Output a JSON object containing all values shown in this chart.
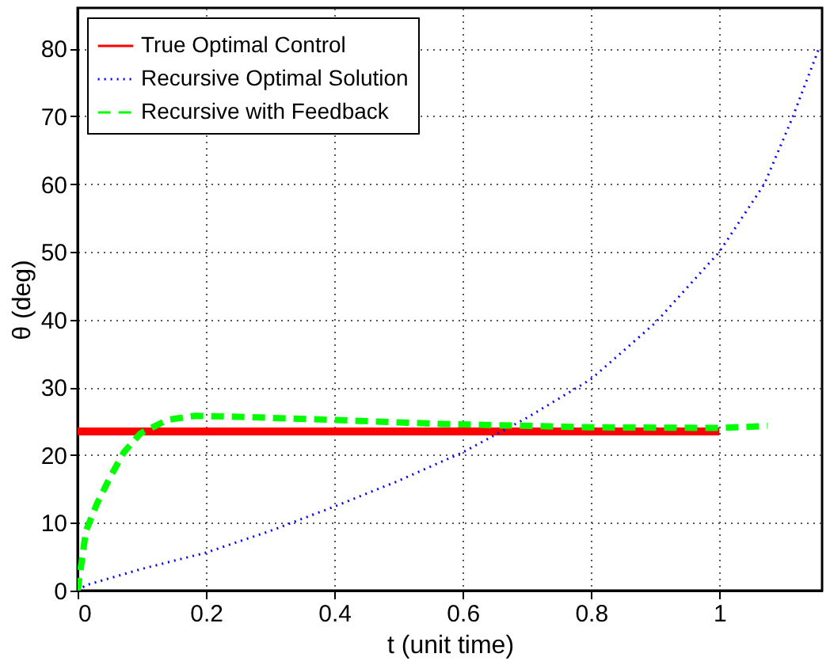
{
  "chart_data": {
    "type": "line",
    "xlabel": "t (unit time)",
    "ylabel": "θ (deg)",
    "xlim": [
      0,
      1.16
    ],
    "ylim": [
      0,
      86
    ],
    "xticks": [
      0,
      0.2,
      0.4,
      0.6,
      0.8,
      1
    ],
    "yticks": [
      0,
      10,
      20,
      30,
      40,
      50,
      60,
      70,
      80
    ],
    "grid": true,
    "legend": "top left",
    "series": [
      {
        "name": "True Optimal Control",
        "color": "#ff0000",
        "line_style": "solid",
        "x": [
          0,
          1
        ],
        "values": [
          23.5,
          23.5
        ]
      },
      {
        "name": "Recursive Optimal Solution",
        "color": "#0000ff",
        "line_style": "dotted",
        "x": [
          0,
          0.013,
          0.1,
          0.2,
          0.3,
          0.4,
          0.5,
          0.6,
          0.7,
          0.8,
          0.9,
          1.0,
          1.07,
          1.113,
          1.155
        ],
        "values": [
          0,
          0.8,
          3.2,
          5.6,
          8.8,
          12.4,
          16.2,
          20.4,
          25.5,
          31.2,
          39.5,
          50,
          60,
          69.6,
          80
        ]
      },
      {
        "name": "Recursive with Feedback",
        "color": "#00ff00",
        "line_style": "dashed",
        "x": [
          0,
          0.013,
          0.03,
          0.051,
          0.072,
          0.098,
          0.14,
          0.183,
          0.268,
          0.396,
          0.566,
          0.8,
          1.0,
          1.075
        ],
        "values": [
          0,
          8.8,
          12.8,
          16.8,
          20.4,
          23.2,
          25.2,
          25.8,
          25.6,
          25.2,
          24.6,
          24.1,
          24.0,
          24.3
        ]
      }
    ]
  }
}
